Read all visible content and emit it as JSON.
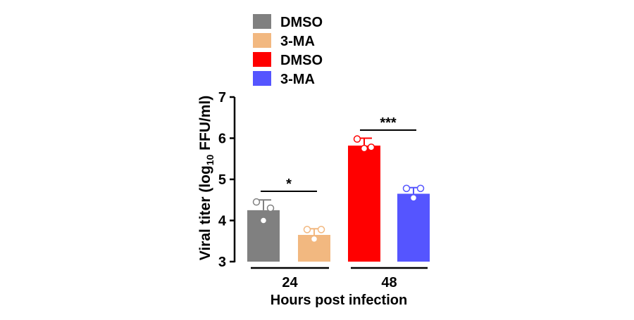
{
  "chart_data": {
    "type": "bar",
    "categories": [
      "24",
      "48"
    ],
    "xlabel": "Hours post infection",
    "ylabel": {
      "prefix": "Viral titer (log",
      "sub": "10",
      "suffix": " FFU/ml)"
    },
    "ylim": [
      3,
      7
    ],
    "yticks": [
      "3",
      "4",
      "5",
      "6",
      "7"
    ],
    "legend_position": "top",
    "series": [
      {
        "name": "DMSO",
        "color": "#808080",
        "category": "24",
        "value": 4.25,
        "error": 0.25,
        "points": [
          4.45,
          4.3,
          4.0
        ]
      },
      {
        "name": "3-MA",
        "color": "#f2b880",
        "category": "24",
        "value": 3.65,
        "error": 0.15,
        "points": [
          3.78,
          3.78,
          3.55
        ]
      },
      {
        "name": "DMSO",
        "color": "#ff0000",
        "category": "48",
        "value": 5.82,
        "error": 0.18,
        "points": [
          5.98,
          5.78,
          5.75
        ]
      },
      {
        "name": "3-MA",
        "color": "#5555ff",
        "category": "48",
        "value": 4.65,
        "error": 0.15,
        "points": [
          4.78,
          4.78,
          4.55
        ]
      }
    ],
    "significance": [
      {
        "category": "24",
        "label": "*"
      },
      {
        "category": "48",
        "label": "***"
      }
    ]
  }
}
